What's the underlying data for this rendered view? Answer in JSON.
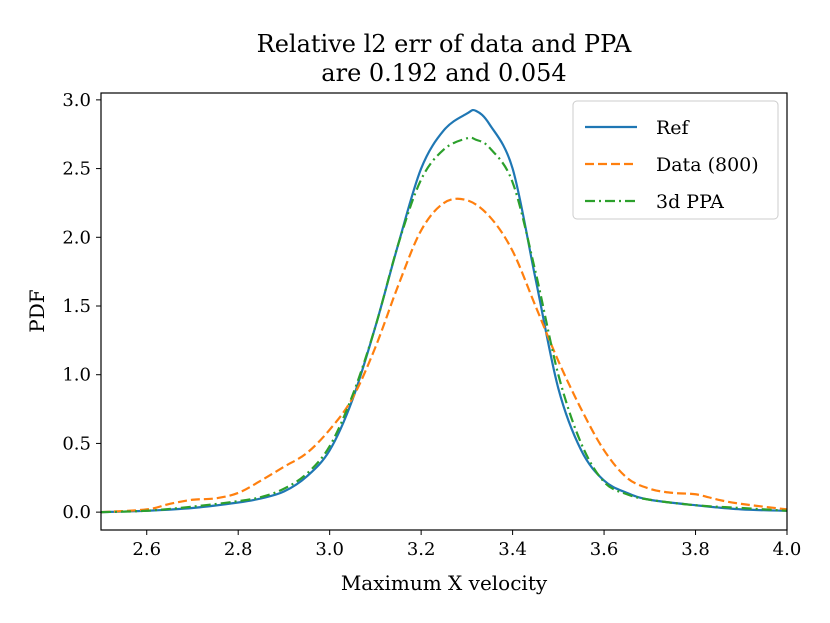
{
  "chart_data": {
    "type": "line",
    "title_lines": [
      "Relative l2 err of data and PPA",
      "are 0.192 and 0.054"
    ],
    "xlabel": "Maximum X velocity",
    "ylabel": "PDF",
    "xlim": [
      2.5,
      4.0
    ],
    "ylim": [
      -0.13,
      3.05
    ],
    "xticks": [
      2.6,
      2.8,
      3.0,
      3.2,
      3.4,
      3.6,
      3.8,
      4.0
    ],
    "xtick_labels": [
      "2.6",
      "2.8",
      "3.0",
      "3.2",
      "3.4",
      "3.6",
      "3.8",
      "4.0"
    ],
    "yticks": [
      0.0,
      0.5,
      1.0,
      1.5,
      2.0,
      2.5,
      3.0
    ],
    "ytick_labels": [
      "0.0",
      "0.5",
      "1.0",
      "1.5",
      "2.0",
      "2.5",
      "3.0"
    ],
    "grid": false,
    "legend_position": "top-right",
    "series": [
      {
        "name": "Ref",
        "color": "#1f77b4",
        "style": "solid",
        "x": [
          2.5,
          2.6,
          2.7,
          2.8,
          2.85,
          2.9,
          2.95,
          3.0,
          3.05,
          3.1,
          3.15,
          3.2,
          3.25,
          3.3,
          3.32,
          3.35,
          3.4,
          3.45,
          3.5,
          3.55,
          3.6,
          3.65,
          3.7,
          3.8,
          3.9,
          4.0
        ],
        "y": [
          0.0,
          0.01,
          0.03,
          0.07,
          0.1,
          0.15,
          0.26,
          0.45,
          0.82,
          1.35,
          1.95,
          2.5,
          2.78,
          2.9,
          2.92,
          2.82,
          2.5,
          1.7,
          0.9,
          0.45,
          0.23,
          0.14,
          0.09,
          0.05,
          0.02,
          0.01
        ]
      },
      {
        "name": "Data (800)",
        "color": "#ff7f0e",
        "style": "dashed",
        "x": [
          2.5,
          2.6,
          2.65,
          2.7,
          2.75,
          2.8,
          2.85,
          2.9,
          2.95,
          3.0,
          3.05,
          3.1,
          3.15,
          3.2,
          3.25,
          3.3,
          3.35,
          3.4,
          3.45,
          3.5,
          3.55,
          3.6,
          3.65,
          3.7,
          3.75,
          3.8,
          3.85,
          3.9,
          4.0
        ],
        "y": [
          0.0,
          0.02,
          0.06,
          0.09,
          0.1,
          0.14,
          0.23,
          0.33,
          0.43,
          0.6,
          0.83,
          1.2,
          1.65,
          2.05,
          2.25,
          2.27,
          2.15,
          1.9,
          1.5,
          1.1,
          0.75,
          0.45,
          0.25,
          0.17,
          0.14,
          0.13,
          0.09,
          0.06,
          0.02
        ]
      },
      {
        "name": "3d PPA",
        "color": "#2ca02c",
        "style": "dashdot",
        "x": [
          2.5,
          2.6,
          2.7,
          2.8,
          2.85,
          2.9,
          2.95,
          3.0,
          3.05,
          3.1,
          3.15,
          3.2,
          3.25,
          3.3,
          3.32,
          3.35,
          3.4,
          3.45,
          3.5,
          3.55,
          3.6,
          3.65,
          3.7,
          3.8,
          3.9,
          4.0
        ],
        "y": [
          0.0,
          0.01,
          0.04,
          0.08,
          0.11,
          0.17,
          0.28,
          0.48,
          0.85,
          1.35,
          1.95,
          2.42,
          2.64,
          2.72,
          2.71,
          2.65,
          2.4,
          1.75,
          1.0,
          0.5,
          0.22,
          0.13,
          0.09,
          0.05,
          0.03,
          0.01
        ]
      }
    ]
  }
}
